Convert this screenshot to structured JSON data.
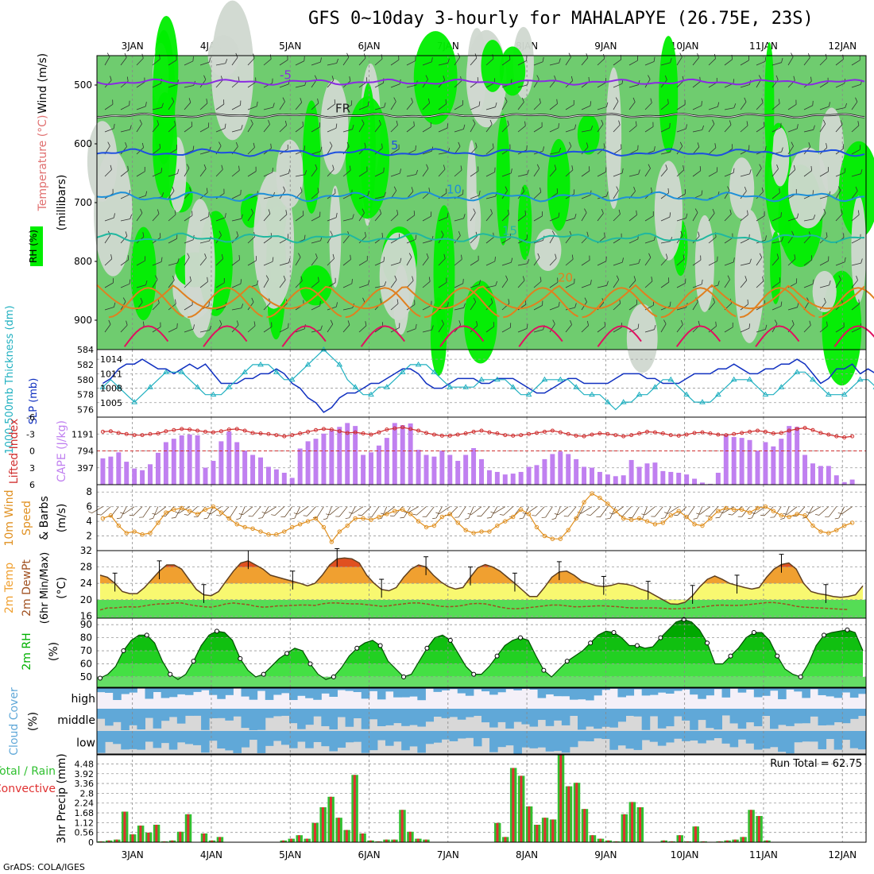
{
  "page": {
    "title": "GFS 0~10day 3-hourly for MAHALAPYE (26.75E, 23S)",
    "credit": "GrADS: COLA/IGES"
  },
  "time_axis": {
    "labels": [
      "3JAN",
      "4JAN",
      "5JAN",
      "6JAN",
      "7JAN",
      "8JAN",
      "9JAN",
      "10JAN",
      "11JAN",
      "12JAN"
    ],
    "day_range": [
      2.55,
      12.3
    ]
  },
  "colors": {
    "rh_light": "#d0d8d0",
    "rh_mid": "#6fcc6f",
    "rh_high": "#00ee00",
    "temp_purple": "#8a2be2",
    "temp_blue": "#1e50e0",
    "temp_lightblue": "#1e90d8",
    "temp_teal": "#20b8a0",
    "temp_orange": "#e08020",
    "temp_red": "#e01060",
    "slp": "#1030c0",
    "thickness": "#20b0c0",
    "cape": "#c080f0",
    "lifted": "#d03030",
    "wind": "#e09020",
    "temp2m": "#f0a030",
    "dew": "#a05020",
    "rh2m": "#00b000",
    "cloud": "#60a8d8",
    "cloud_bg": "#d8d8d8",
    "rain": "#e03030",
    "total": "#30c030"
  },
  "chart_data": [
    {
      "type": "heatmap",
      "name": "upper",
      "label_wind": "Wind (m/s)",
      "label_temp": "Temperature (°C)",
      "label_rh": "RH (%)",
      "ylabel": "(millibars)",
      "yticks": [
        500,
        600,
        700,
        800,
        900
      ],
      "ylim": [
        450,
        950
      ],
      "isotherms": [
        {
          "label": "-5",
          "color_key": "temp_purple",
          "base": 495,
          "amp": 6
        },
        {
          "label": "FR",
          "color_key": "dew",
          "base": 552,
          "amp": 4
        },
        {
          "label": "5",
          "color_key": "temp_blue",
          "base": 615,
          "amp": 8
        },
        {
          "label": "10",
          "color_key": "temp_lightblue",
          "base": 690,
          "amp": 10
        },
        {
          "label": "15",
          "color_key": "temp_teal",
          "base": 760,
          "amp": 10
        },
        {
          "label": "20",
          "color_key": "temp_orange",
          "base": 840,
          "amp": 40
        }
      ]
    },
    {
      "type": "line",
      "name": "slp-thickness",
      "ylabel_left": "1000-500mb Thickness (dm)",
      "ylabel_right": "SLP (mb)",
      "yticks_left": [
        576,
        578,
        580,
        582,
        584
      ],
      "yticks_right": [
        1005,
        1008,
        1011,
        1014
      ],
      "ylim_left": [
        575,
        584
      ],
      "ylim_right": [
        1002,
        1016
      ],
      "series": [
        {
          "name": "SLP",
          "axis": "right",
          "values": [
            1009,
            1010,
            1012,
            1013,
            1013,
            1014,
            1013,
            1012,
            1012,
            1011,
            1012,
            1013,
            1012,
            1013,
            1011,
            1009,
            1009,
            1009,
            1010,
            1010,
            1011,
            1011,
            1012,
            1011,
            1009,
            1008,
            1006,
            1005,
            1003,
            1004,
            1006,
            1007,
            1007,
            1008,
            1009,
            1009,
            1010,
            1011,
            1012,
            1012,
            1011,
            1009,
            1008,
            1008,
            1009,
            1010,
            1010,
            1010,
            1009,
            1009,
            1010,
            1010,
            1010,
            1009,
            1008,
            1007,
            1007,
            1008,
            1009,
            1010,
            1010,
            1009,
            1009,
            1009,
            1009,
            1010,
            1011,
            1011,
            1011,
            1010,
            1010,
            1009,
            1009,
            1009,
            1010,
            1011,
            1011,
            1011,
            1012,
            1012,
            1013,
            1012,
            1011,
            1011,
            1012,
            1012,
            1013,
            1013,
            1014,
            1013,
            1011,
            1009,
            1010,
            1012,
            1012,
            1013,
            1011,
            1012,
            1011,
            1011,
            1012
          ]
        },
        {
          "name": "Thickness",
          "axis": "left",
          "values": [
            579,
            580,
            579,
            578,
            577,
            578,
            579,
            580,
            581,
            581,
            581,
            580,
            579,
            578,
            578,
            578,
            579,
            580,
            581,
            582,
            582,
            582,
            581,
            580,
            580,
            581,
            582,
            583,
            584,
            583,
            582,
            580,
            579,
            578,
            578,
            579,
            579,
            580,
            581,
            582,
            582,
            582,
            581,
            580,
            579,
            579,
            579,
            579,
            580,
            580,
            580,
            580,
            579,
            578,
            578,
            579,
            580,
            580,
            580,
            580,
            579,
            578,
            578,
            578,
            577,
            576,
            577,
            577,
            578,
            578,
            579,
            580,
            580,
            579,
            578,
            577,
            577,
            577,
            578,
            579,
            580,
            580,
            580,
            579,
            578,
            578,
            579,
            580,
            581,
            581,
            580,
            579,
            578,
            578,
            578,
            579,
            580,
            580,
            579,
            578,
            579
          ]
        }
      ]
    },
    {
      "type": "bar",
      "name": "cape-li",
      "ylabel_left": "Lifted Index",
      "ylabel_right": "CAPE (J/kg)",
      "yticks_left": [
        "-6",
        "-3",
        "0",
        "3",
        "6"
      ],
      "yticks_right": [
        "397",
        "794",
        "1191"
      ],
      "ylim_left": [
        -6,
        6
      ],
      "ylim_right": [
        0,
        1588
      ],
      "cape": [
        620,
        660,
        760,
        540,
        380,
        340,
        480,
        750,
        1000,
        1080,
        1160,
        1180,
        1160,
        400,
        560,
        1020,
        1250,
        1000,
        800,
        700,
        640,
        420,
        360,
        280,
        160,
        850,
        1020,
        1080,
        1200,
        1280,
        1360,
        1450,
        1380,
        700,
        760,
        920,
        1100,
        1450,
        1400,
        1440,
        820,
        700,
        660,
        800,
        700,
        560,
        700,
        860,
        600,
        340,
        300,
        240,
        260,
        300,
        420,
        460,
        600,
        720,
        780,
        720,
        600,
        420,
        400,
        300,
        240,
        200,
        220,
        580,
        420,
        500,
        520,
        320,
        300,
        280,
        240,
        140,
        50,
        20,
        280,
        1180,
        1120,
        1100,
        1050,
        800,
        1000,
        900,
        1080,
        1380,
        1360,
        700,
        500,
        440,
        440,
        220,
        60,
        120
      ],
      "lifted": [
        -3.4,
        -3.5,
        -3.2,
        -3.0,
        -2.8,
        -2.8,
        -3.0,
        -3.1,
        -3.5,
        -3.7,
        -3.9,
        -3.8,
        -3.6,
        -3.4,
        -3.3,
        -3.5,
        -3.8,
        -3.9,
        -3.6,
        -3.2,
        -3.1,
        -3.0,
        -2.8,
        -2.6,
        -2.8,
        -3.1,
        -3.4,
        -3.7,
        -3.9,
        -3.8,
        -3.5,
        -3.2,
        -3.3,
        -3.1,
        -2.9,
        -3.3,
        -3.8,
        -4.0,
        -4.2,
        -3.9,
        -3.6,
        -3.2,
        -2.9,
        -2.7,
        -2.7,
        -2.9,
        -3.1,
        -3.4,
        -3.6,
        -3.3,
        -3.1,
        -2.8,
        -2.7,
        -2.8,
        -3.0,
        -3.2,
        -3.4,
        -3.6,
        -3.3,
        -3.0,
        -2.7,
        -2.6,
        -2.9,
        -3.1,
        -3.0,
        -2.8,
        -2.6,
        -2.8,
        -3.1,
        -3.4,
        -3.3,
        -3.1,
        -2.8,
        -2.7,
        -2.9,
        -3.2,
        -3.3,
        -3.1,
        -2.9,
        -2.8,
        -3.0,
        -3.2,
        -3.4,
        -3.6,
        -3.4,
        -3.1,
        -3.2,
        -3.6,
        -3.9,
        -4.1,
        -3.7,
        -3.2,
        -2.9,
        -2.6,
        -2.4,
        -2.6
      ]
    },
    {
      "type": "line",
      "name": "wind10m",
      "ylabel": "10m Wind Speed & Barbs (m/s)",
      "yticks": [
        2,
        4,
        6,
        8
      ],
      "ylim": [
        0,
        9
      ],
      "values": [
        4.4,
        4.8,
        3.4,
        2.4,
        2.6,
        2.2,
        2.4,
        3.8,
        5.2,
        5.6,
        5.8,
        5.4,
        5.0,
        5.6,
        6.0,
        5.2,
        4.4,
        3.6,
        3.2,
        3.0,
        2.6,
        2.2,
        2.2,
        2.6,
        3.2,
        3.6,
        4.0,
        4.4,
        3.2,
        1.2,
        2.6,
        3.4,
        4.4,
        4.4,
        4.2,
        4.6,
        5.0,
        5.4,
        5.6,
        5.0,
        4.0,
        3.2,
        3.4,
        4.6,
        5.0,
        3.8,
        2.8,
        2.4,
        2.6,
        2.6,
        3.4,
        4.0,
        4.6,
        5.6,
        5.0,
        3.2,
        2.0,
        1.6,
        1.6,
        2.8,
        4.4,
        6.6,
        7.8,
        7.2,
        6.4,
        5.4,
        4.4,
        4.2,
        4.4,
        4.0,
        3.6,
        3.8,
        4.8,
        5.4,
        4.6,
        3.6,
        3.4,
        4.4,
        5.4,
        5.8,
        5.6,
        5.6,
        5.2,
        5.8,
        6.0,
        5.4,
        4.8,
        4.6,
        5.0,
        4.8,
        3.4,
        2.6,
        2.4,
        2.8,
        3.4,
        3.8
      ]
    },
    {
      "type": "area",
      "name": "temp2m",
      "ylabel": "2m Temp 2m DewPt (6hr Min/Max) (°C)",
      "yticks": [
        16,
        20,
        24,
        28,
        32
      ],
      "ylim": [
        15.5,
        32
      ],
      "temp": [
        26,
        25.5,
        24,
        22,
        21.5,
        21.5,
        23,
        25,
        27,
        28.5,
        28.5,
        27.5,
        25,
        22.5,
        21.2,
        21,
        22,
        24.5,
        27,
        29,
        29.5,
        28.5,
        27.5,
        26,
        25.5,
        25,
        24.5,
        24,
        23.4,
        24,
        26,
        28.5,
        30,
        30.2,
        30,
        29,
        26,
        24,
        22.5,
        22.2,
        23,
        25.5,
        27.5,
        28.5,
        28,
        26,
        24.4,
        23.2,
        22.6,
        23,
        25.5,
        27.8,
        28.6,
        28,
        27,
        25.5,
        24,
        22.4,
        20.8,
        20.8,
        23,
        25.5,
        26.8,
        27,
        26,
        24.6,
        24,
        23.4,
        23.2,
        23.5,
        24,
        23.8,
        23.4,
        22.6,
        22,
        21,
        20,
        19,
        18.9,
        19.4,
        21,
        23.2,
        25,
        25.8,
        25,
        24,
        23.5,
        23,
        22.6,
        23,
        25.5,
        27.5,
        28.6,
        29,
        27.5,
        24,
        22,
        21.5,
        21.2,
        20.8,
        20.6,
        20.8,
        21.2,
        23.4
      ],
      "dew": [
        17.5,
        18,
        18,
        18.2,
        18.3,
        18.2,
        18.5,
        18.8,
        19,
        19,
        19.2,
        19.2,
        18.8,
        18.5,
        18.3,
        18.2,
        18.5,
        19,
        19.2,
        19,
        18.8,
        18.4,
        18.2,
        18.3,
        18.5,
        18.5,
        18.6,
        18.7,
        18.7,
        18.6,
        19,
        19.2,
        19.2,
        19.1,
        19,
        19,
        18.8,
        18.6,
        18.4,
        18.5,
        18.8,
        19,
        19.2,
        19.2,
        19,
        18.7,
        18.4,
        18.3,
        18.4,
        18.6,
        19,
        19.1,
        19,
        18.6,
        18.2,
        17.9,
        17.8,
        17.9,
        18.1,
        18.3,
        18.5,
        18.7,
        18.7,
        18.5,
        18.3,
        18.3,
        18.4,
        18.5,
        18.5,
        18.4,
        18.3,
        18.1,
        18,
        18,
        18,
        18,
        17.9,
        17.8,
        17.8,
        17.9,
        18,
        18.2,
        18.4,
        18.6,
        18.7,
        18.6,
        18.6,
        18.7,
        18.9,
        19.1,
        19.3,
        19.3,
        19.1,
        18.8,
        18.4,
        18.2,
        18.1,
        18,
        17.9,
        17.8,
        17.7,
        17.6
      ]
    },
    {
      "type": "area",
      "name": "rh2m",
      "ylabel": "2m RH (%)",
      "yticks": [
        50,
        60,
        70,
        80,
        90
      ],
      "ylim": [
        42,
        95
      ],
      "values": [
        49,
        52,
        58,
        70,
        78,
        82,
        82,
        76,
        62,
        52,
        48,
        52,
        62,
        74,
        82,
        85,
        84,
        78,
        64,
        55,
        50,
        52,
        58,
        64,
        68,
        72,
        70,
        60,
        52,
        48,
        50,
        57,
        66,
        72,
        76,
        78,
        74,
        62,
        56,
        50,
        52,
        62,
        72,
        80,
        82,
        78,
        68,
        58,
        52,
        52,
        58,
        66,
        74,
        78,
        80,
        78,
        66,
        55,
        50,
        56,
        62,
        66,
        70,
        76,
        82,
        85,
        84,
        80,
        74,
        74,
        72,
        73,
        80,
        86,
        92,
        94,
        92,
        86,
        76,
        60,
        60,
        66,
        72,
        80,
        84,
        84,
        78,
        66,
        56,
        52,
        50,
        60,
        74,
        82,
        84,
        85,
        86,
        84,
        70
      ]
    },
    {
      "type": "table",
      "name": "cloud",
      "ylabel": "Cloud Cover (%)",
      "layers": [
        "high",
        "middle",
        "low"
      ]
    },
    {
      "type": "bar",
      "name": "precip",
      "ylabel_left": "Total / Rain Convective",
      "ylabel_right": "3hr Precip (mm)",
      "run_total_label": "Run Total = 62.75",
      "yticks": [
        "0",
        "0.56",
        "1.12",
        "1.68",
        "2.24",
        "2.8",
        "3.36",
        "3.92",
        "4.48"
      ],
      "ylim": [
        0,
        5.0
      ],
      "values": [
        0.05,
        0.1,
        0.15,
        1.75,
        0.45,
        0.95,
        0.55,
        1.0,
        0.05,
        0.1,
        0.6,
        1.6,
        0,
        0.5,
        0.1,
        0.3,
        0,
        0,
        0,
        0,
        0,
        0,
        0,
        0.1,
        0.2,
        0.4,
        0.2,
        1.1,
        2.0,
        2.6,
        1.4,
        0.7,
        3.85,
        0.5,
        0.1,
        0.05,
        0.15,
        0.15,
        1.85,
        0.6,
        0.2,
        0.15,
        0,
        0,
        0,
        0,
        0,
        0,
        0,
        0,
        1.1,
        0.3,
        4.25,
        3.8,
        2.05,
        1.0,
        1.4,
        1.3,
        5.0,
        3.2,
        3.4,
        1.9,
        0.4,
        0.2,
        0.1,
        0.05,
        1.6,
        2.3,
        2.0,
        0,
        0,
        0.1,
        0.05,
        0.4,
        0.05,
        0.9,
        0.05,
        0,
        0.05,
        0.1,
        0.15,
        0.3,
        1.85,
        1.5,
        0.1,
        0,
        0,
        0,
        0,
        0,
        0,
        0,
        0,
        0,
        0,
        0,
        0
      ]
    }
  ]
}
